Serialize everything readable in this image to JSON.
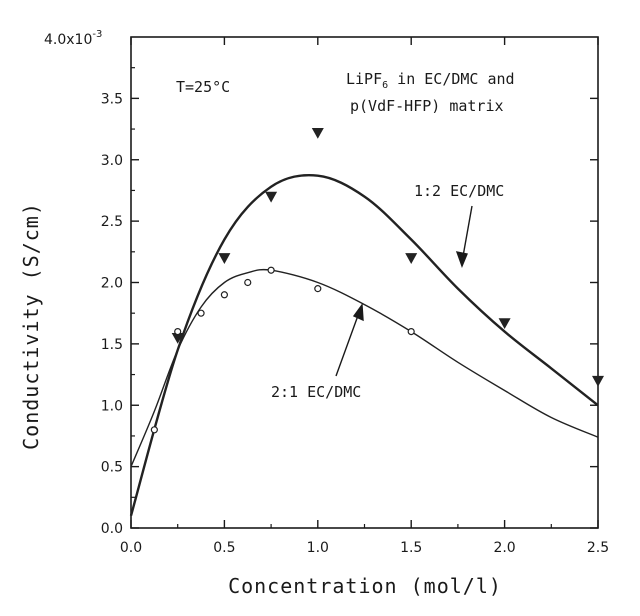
{
  "chart_data": {
    "type": "scatter",
    "title": "",
    "xlabel": "Concentration (mol/l)",
    "ylabel": "Conductivity (S/cm)",
    "xlim": [
      0,
      2.5
    ],
    "ylim": [
      0,
      4.0
    ],
    "y_scale_label": "4.0x10",
    "y_scale_exp": "-3",
    "x_ticks": [
      "0.0",
      "0.5",
      "1.0",
      "1.5",
      "2.0",
      "2.5"
    ],
    "y_ticks": [
      "0.0",
      "0.5",
      "1.0",
      "1.5",
      "2.0",
      "2.5",
      "3.0",
      "3.5"
    ],
    "x_tick_values": [
      0,
      0.5,
      1.0,
      1.5,
      2.0,
      2.5
    ],
    "y_tick_values": [
      0,
      0.5,
      1.0,
      1.5,
      2.0,
      2.5,
      3.0,
      3.5
    ],
    "annotations": {
      "temperature": "T=25°C",
      "system_line1_prefix": "LiPF",
      "system_line1_sub": "6",
      "system_line1_suffix": " in EC/DMC and",
      "system_line2": "p(VdF-HFP) matrix",
      "label_1_2": "1:2 EC/DMC",
      "label_2_1": "2:1 EC/DMC"
    },
    "series": [
      {
        "name": "1:2 EC/DMC",
        "marker": "triangle-down",
        "color": "#222222",
        "points": [
          [
            0.25,
            1.55
          ],
          [
            0.5,
            2.2
          ],
          [
            0.75,
            2.7
          ],
          [
            1.0,
            3.22
          ],
          [
            1.5,
            2.2
          ],
          [
            2.0,
            1.67
          ],
          [
            2.5,
            1.2
          ]
        ],
        "fit": [
          [
            0,
            0.1
          ],
          [
            0.25,
            1.45
          ],
          [
            0.5,
            2.35
          ],
          [
            0.75,
            2.78
          ],
          [
            1.0,
            2.87
          ],
          [
            1.25,
            2.7
          ],
          [
            1.5,
            2.35
          ],
          [
            1.75,
            1.95
          ],
          [
            2.0,
            1.6
          ],
          [
            2.25,
            1.3
          ],
          [
            2.5,
            1.0
          ]
        ]
      },
      {
        "name": "2:1 EC/DMC",
        "marker": "circle-open",
        "color": "#222222",
        "points": [
          [
            0.125,
            0.8
          ],
          [
            0.25,
            1.6
          ],
          [
            0.375,
            1.75
          ],
          [
            0.5,
            1.9
          ],
          [
            0.625,
            2.0
          ],
          [
            0.75,
            2.1
          ],
          [
            1.0,
            1.95
          ],
          [
            1.5,
            1.6
          ]
        ],
        "fit": [
          [
            0,
            0.5
          ],
          [
            0.125,
            0.95
          ],
          [
            0.25,
            1.45
          ],
          [
            0.375,
            1.8
          ],
          [
            0.5,
            2.0
          ],
          [
            0.625,
            2.08
          ],
          [
            0.75,
            2.1
          ],
          [
            1.0,
            2.0
          ],
          [
            1.25,
            1.82
          ],
          [
            1.5,
            1.6
          ],
          [
            1.75,
            1.35
          ],
          [
            2.0,
            1.12
          ],
          [
            2.25,
            0.9
          ],
          [
            2.5,
            0.74
          ]
        ]
      }
    ]
  }
}
